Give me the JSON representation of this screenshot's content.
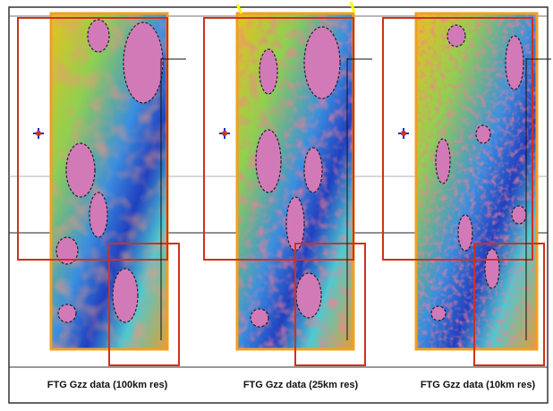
{
  "panels": [
    {
      "caption": "FTG Gzz data (100km res)"
    },
    {
      "caption": "FTG Gzz data (25km res)"
    },
    {
      "caption": "FTG Gzz data (10km res)"
    }
  ]
}
